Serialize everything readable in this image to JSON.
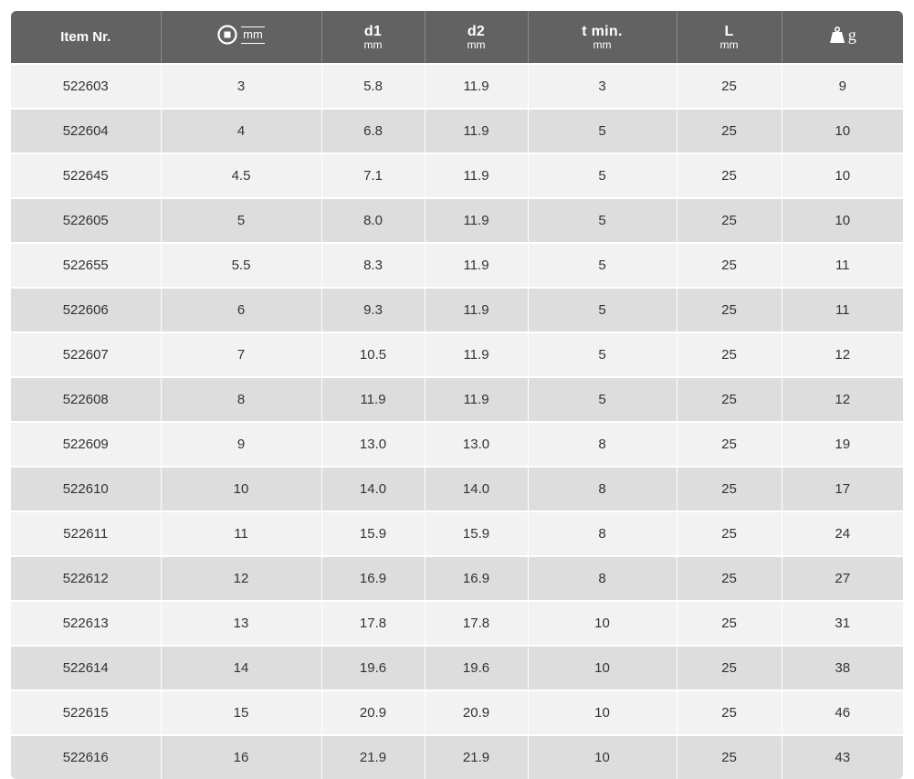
{
  "table": {
    "headers": {
      "item": "Item Nr.",
      "size_unit": "mm",
      "d1": "d1",
      "d1_unit": "mm",
      "d2": "d2",
      "d2_unit": "mm",
      "t": "t min.",
      "t_unit": "mm",
      "L": "L",
      "L_unit": "mm",
      "weight_unit": "g",
      "size_icon": "socket-square-icon",
      "weight_icon": "weight-icon"
    },
    "rows": [
      [
        "522603",
        "3",
        "5.8",
        "11.9",
        "3",
        "25",
        "9"
      ],
      [
        "522604",
        "4",
        "6.8",
        "11.9",
        "5",
        "25",
        "10"
      ],
      [
        "522645",
        "4.5",
        "7.1",
        "11.9",
        "5",
        "25",
        "10"
      ],
      [
        "522605",
        "5",
        "8.0",
        "11.9",
        "5",
        "25",
        "10"
      ],
      [
        "522655",
        "5.5",
        "8.3",
        "11.9",
        "5",
        "25",
        "11"
      ],
      [
        "522606",
        "6",
        "9.3",
        "11.9",
        "5",
        "25",
        "11"
      ],
      [
        "522607",
        "7",
        "10.5",
        "11.9",
        "5",
        "25",
        "12"
      ],
      [
        "522608",
        "8",
        "11.9",
        "11.9",
        "5",
        "25",
        "12"
      ],
      [
        "522609",
        "9",
        "13.0",
        "13.0",
        "8",
        "25",
        "19"
      ],
      [
        "522610",
        "10",
        "14.0",
        "14.0",
        "8",
        "25",
        "17"
      ],
      [
        "522611",
        "11",
        "15.9",
        "15.9",
        "8",
        "25",
        "24"
      ],
      [
        "522612",
        "12",
        "16.9",
        "16.9",
        "8",
        "25",
        "27"
      ],
      [
        "522613",
        "13",
        "17.8",
        "17.8",
        "10",
        "25",
        "31"
      ],
      [
        "522614",
        "14",
        "19.6",
        "19.6",
        "10",
        "25",
        "38"
      ],
      [
        "522615",
        "15",
        "20.9",
        "20.9",
        "10",
        "25",
        "46"
      ],
      [
        "522616",
        "16",
        "21.9",
        "21.9",
        "10",
        "25",
        "43"
      ]
    ]
  }
}
